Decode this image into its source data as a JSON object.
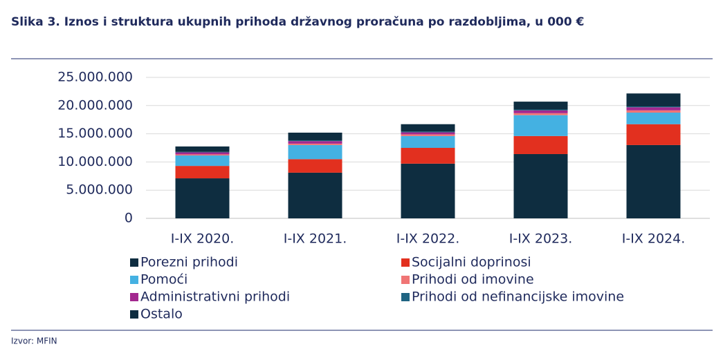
{
  "chart_data": {
    "type": "stacked_bar",
    "title": "Slika 3. Iznos i struktura ukupnih prihoda državnog proračuna po razdobljima, u 000 €",
    "source": "Izvor: MFIN",
    "categories": [
      "I-IX 2020.",
      "I-IX 2021.",
      "I-IX 2022.",
      "I-IX 2023.",
      "I-IX 2024."
    ],
    "series": [
      {
        "name": "Porezni prihodi",
        "color": "#0e2d40",
        "values": [
          7100000,
          8100000,
          9700000,
          11400000,
          13000000
        ]
      },
      {
        "name": "Socijalni doprinosi",
        "color": "#e2301f",
        "values": [
          2200000,
          2400000,
          2800000,
          3200000,
          3700000
        ]
      },
      {
        "name": "Pomoći",
        "color": "#44b1e2",
        "values": [
          1850000,
          2500000,
          2100000,
          3700000,
          2050000
        ]
      },
      {
        "name": "Prihodi od imovine",
        "color": "#f07575",
        "values": [
          200000,
          250000,
          300000,
          350000,
          400000
        ]
      },
      {
        "name": "Administrativni prihodi",
        "color": "#a3288f",
        "values": [
          350000,
          450000,
          350000,
          500000,
          550000
        ]
      },
      {
        "name": "Prihodi od nefinancijske imovine",
        "color": "#1f6482",
        "values": [
          100000,
          150000,
          150000,
          150000,
          150000
        ]
      },
      {
        "name": "Ostalo",
        "color": "#0e2d40",
        "values": [
          950000,
          1350000,
          1300000,
          1400000,
          2300000
        ]
      }
    ],
    "ylim": [
      0,
      25000000
    ],
    "yticks": [
      0,
      {
        "value": 5000000,
        "label": "5.000.000"
      },
      {
        "value": 10000000,
        "label": "10.000.000"
      },
      {
        "value": 15000000,
        "label": "15.000.000"
      },
      {
        "value": 20000000,
        "label": "20.000.000"
      },
      {
        "value": 25000000,
        "label": "25.000.000"
      }
    ],
    "grid": true
  }
}
